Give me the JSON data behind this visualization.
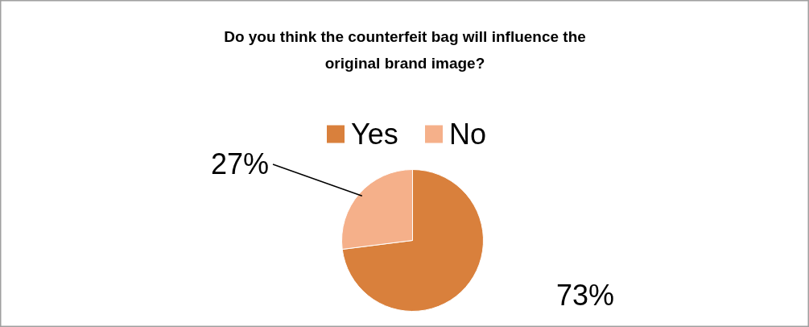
{
  "chart_data": {
    "type": "pie",
    "title": "Do you think the counterfeit bag will influence the original brand image?",
    "categories": [
      "Yes",
      "No"
    ],
    "values": [
      73,
      27
    ],
    "colors": [
      "#d9803c",
      "#f5b08a"
    ],
    "value_labels": [
      "73%",
      "27%"
    ],
    "legend": "top"
  }
}
